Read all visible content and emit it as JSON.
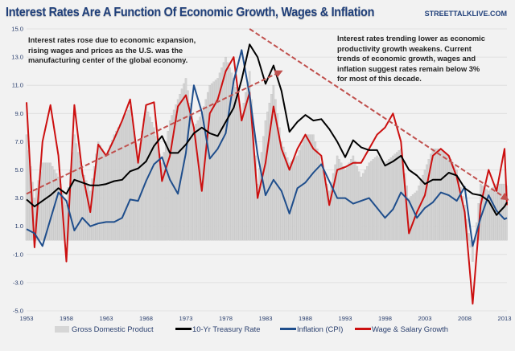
{
  "header": {
    "title": "Interest Rates Are A Function Of Economic Growth, Wages & Inflation",
    "site": "STREETTALKLIVE.COM"
  },
  "annotations": {
    "left": [
      "Interest rates rose due to  economic expansion,",
      "rising wages and prices as the U.S. was the",
      "manufacturing center of the global economy."
    ],
    "right": [
      "Interest rates trending lower as economic",
      "productivity growth  weakens.   Current",
      "trends of economic growth, wages and",
      "inflation suggest rates remain below 3%",
      "for most of this decade."
    ]
  },
  "colors": {
    "gdp": "#d4d4d4",
    "treasury": "#000000",
    "inflation": "#1f4e8c",
    "wages": "#cc1010",
    "trend": "#c0504d",
    "grid": "#dcdcdc",
    "axis_text": "#2a3f6e"
  },
  "chart_data": {
    "type": "line",
    "title": "Interest Rates Are A Function Of Economic Growth, Wages & Inflation",
    "xlabel": "",
    "ylabel": "",
    "ylim": [
      -5.0,
      15.0
    ],
    "xlim": [
      1953,
      2014
    ],
    "grid": true,
    "legend_position": "bottom",
    "y_ticks": [
      "15.0",
      "13.0",
      "11.0",
      "9.0",
      "7.0",
      "5.0",
      "3.0",
      "1.0",
      "-1.0",
      "-3.0",
      "-5.0"
    ],
    "y_tick_values": [
      15,
      13,
      11,
      9,
      7,
      5,
      3,
      1,
      -1,
      -3,
      -5
    ],
    "x_ticks": [
      "1953",
      "1958",
      "1963",
      "1968",
      "1973",
      "1978",
      "1983",
      "1988",
      "1993",
      "1998",
      "2003",
      "2008",
      "2013"
    ],
    "x_tick_values": [
      1953,
      1958,
      1963,
      1968,
      1973,
      1978,
      1983,
      1988,
      1993,
      1998,
      2003,
      2008,
      2013
    ],
    "x": [
      1953,
      1954,
      1955,
      1956,
      1957,
      1958,
      1959,
      1960,
      1961,
      1962,
      1963,
      1964,
      1965,
      1966,
      1967,
      1968,
      1969,
      1970,
      1971,
      1972,
      1973,
      1974,
      1975,
      1976,
      1977,
      1978,
      1979,
      1980,
      1981,
      1982,
      1983,
      1984,
      1985,
      1986,
      1987,
      1988,
      1989,
      1990,
      1991,
      1992,
      1993,
      1994,
      1995,
      1996,
      1997,
      1998,
      1999,
      2000,
      2001,
      2002,
      2003,
      2004,
      2005,
      2006,
      2007,
      2008,
      2009,
      2010,
      2011,
      2012,
      2013,
      2014
    ],
    "series": [
      {
        "name": "Gross Domestic Product",
        "kind": "bar",
        "values": [
          7.5,
          3.0,
          5.5,
          5.5,
          4.5,
          2.5,
          7.5,
          5.0,
          3.5,
          7.0,
          6.0,
          7.5,
          8.5,
          9.5,
          6.0,
          9.5,
          8.0,
          5.5,
          8.5,
          10.0,
          11.5,
          8.0,
          9.0,
          11.0,
          11.5,
          13.0,
          11.5,
          9.0,
          12.0,
          4.0,
          8.5,
          11.0,
          7.0,
          5.5,
          6.0,
          7.5,
          7.5,
          5.5,
          3.5,
          6.0,
          5.0,
          6.0,
          4.5,
          5.5,
          6.0,
          5.5,
          6.0,
          6.5,
          3.0,
          3.5,
          5.0,
          6.5,
          6.5,
          6.0,
          5.0,
          2.5,
          -1.5,
          4.0,
          3.5,
          4.0,
          4.0,
          3.5
        ]
      },
      {
        "name": "10-Yr Treasury Rate",
        "kind": "line",
        "values": [
          2.9,
          2.4,
          2.8,
          3.2,
          3.7,
          3.3,
          4.3,
          4.1,
          3.9,
          3.9,
          4.0,
          4.2,
          4.3,
          4.9,
          5.1,
          5.6,
          6.7,
          7.4,
          6.2,
          6.2,
          6.8,
          7.6,
          8.0,
          7.6,
          7.4,
          8.4,
          9.4,
          11.4,
          13.9,
          13.0,
          11.1,
          12.4,
          10.6,
          7.7,
          8.4,
          8.9,
          8.5,
          8.6,
          7.9,
          7.0,
          5.9,
          7.1,
          6.6,
          6.4,
          6.4,
          5.3,
          5.6,
          6.0,
          5.0,
          4.6,
          4.0,
          4.3,
          4.3,
          4.8,
          4.6,
          3.7,
          3.3,
          3.2,
          2.8,
          1.8,
          2.4,
          2.7
        ]
      },
      {
        "name": "Inflation (CPI)",
        "kind": "line",
        "values": [
          0.8,
          0.5,
          -0.4,
          1.5,
          3.4,
          2.8,
          0.7,
          1.6,
          1.0,
          1.2,
          1.3,
          1.3,
          1.6,
          2.9,
          2.8,
          4.2,
          5.4,
          5.9,
          4.3,
          3.3,
          6.2,
          11.0,
          9.1,
          5.8,
          6.5,
          7.6,
          11.3,
          13.5,
          10.3,
          6.1,
          3.2,
          4.3,
          3.5,
          1.9,
          3.7,
          4.1,
          4.8,
          5.4,
          4.2,
          3.0,
          3.0,
          2.6,
          2.8,
          3.0,
          2.3,
          1.6,
          2.2,
          3.4,
          2.8,
          1.6,
          2.3,
          2.7,
          3.4,
          3.2,
          2.8,
          3.8,
          -0.4,
          1.6,
          3.2,
          2.1,
          1.5,
          1.6
        ]
      },
      {
        "name": "Wage & Salary Growth",
        "kind": "line",
        "values": [
          9.8,
          -0.5,
          7.0,
          9.6,
          6.0,
          -1.5,
          9.6,
          4.8,
          2.0,
          6.8,
          6.0,
          7.2,
          8.5,
          10.0,
          5.5,
          9.6,
          9.8,
          4.2,
          6.0,
          9.5,
          10.3,
          8.0,
          3.5,
          9.0,
          10.0,
          12.0,
          13.0,
          8.5,
          10.5,
          3.0,
          5.5,
          9.5,
          6.5,
          5.0,
          6.5,
          7.5,
          6.5,
          6.0,
          2.5,
          5.0,
          5.2,
          5.5,
          5.5,
          6.5,
          7.5,
          8.0,
          9.0,
          7.0,
          0.5,
          2.0,
          3.2,
          6.0,
          6.5,
          6.0,
          4.5,
          2.0,
          -4.5,
          2.5,
          5.0,
          3.5,
          6.5,
          2.5
        ]
      },
      {
        "name": "Trend Rising",
        "kind": "trendline",
        "values": [
          3.3,
          12.0
        ],
        "x": [
          1953,
          1985
        ]
      },
      {
        "name": "Trend Falling",
        "kind": "trendline",
        "values": [
          15.0,
          2.9
        ],
        "x": [
          1981,
          2014
        ]
      }
    ]
  },
  "legend": [
    {
      "label": "Gross Domestic Product",
      "kind": "box",
      "color": "#d4d4d4"
    },
    {
      "label": "10-Yr Treasury Rate",
      "kind": "line",
      "color": "#000000"
    },
    {
      "label": "Inflation (CPI)",
      "kind": "line",
      "color": "#1f4e8c"
    },
    {
      "label": "Wage & Salary Growth",
      "kind": "line",
      "color": "#cc1010"
    }
  ]
}
